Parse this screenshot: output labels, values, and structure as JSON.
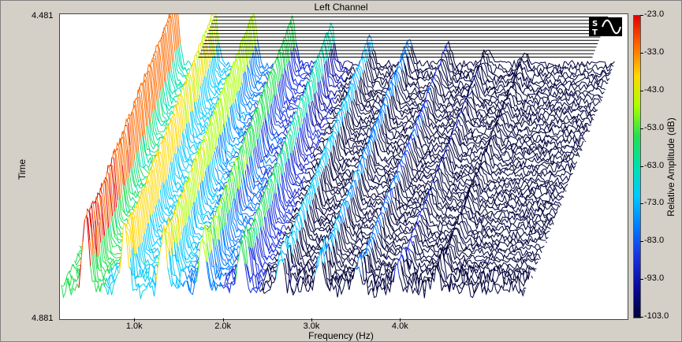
{
  "window": {
    "title": "Left Channel"
  },
  "logo": {
    "icon": "st-sine-logo-icon"
  },
  "chart_data": {
    "type": "waterfall",
    "title": "Left Channel",
    "xlabel": "Frequency (Hz)",
    "ylabel": "Time",
    "zlabel": "Relative Amplitude (dB)",
    "xticks": [
      "1.0k",
      "2.0k",
      "3.0k",
      "4.0k"
    ],
    "xtick_values": [
      1000,
      2000,
      3000,
      4000
    ],
    "xlim": [
      170,
      5400
    ],
    "ylim": [
      4.481,
      4.881
    ],
    "yticks": [
      "4.481",
      "4.881"
    ],
    "zlim": [
      -103.0,
      -23.0
    ],
    "colorbar_ticks": [
      "-23.0",
      "-33.0",
      "-43.0",
      "-53.0",
      "-63.0",
      "-73.0",
      "-83.0",
      "-93.0",
      "-103.0"
    ],
    "colormap": [
      "#e00000",
      "#ff6a00",
      "#ffd800",
      "#a8ff00",
      "#22e050",
      "#00e0b0",
      "#00c8ff",
      "#007bff",
      "#1a2fe0",
      "#0a0a9a",
      "#00003a"
    ],
    "harmonic_peaks_hz": [
      440,
      880,
      1320,
      1760,
      2200,
      2640,
      3080,
      3520,
      3960,
      4400
    ],
    "harmonic_peaks_db": [
      -24,
      -36,
      -40,
      -48,
      -55,
      -68,
      -72,
      -78,
      -83,
      -88
    ]
  }
}
